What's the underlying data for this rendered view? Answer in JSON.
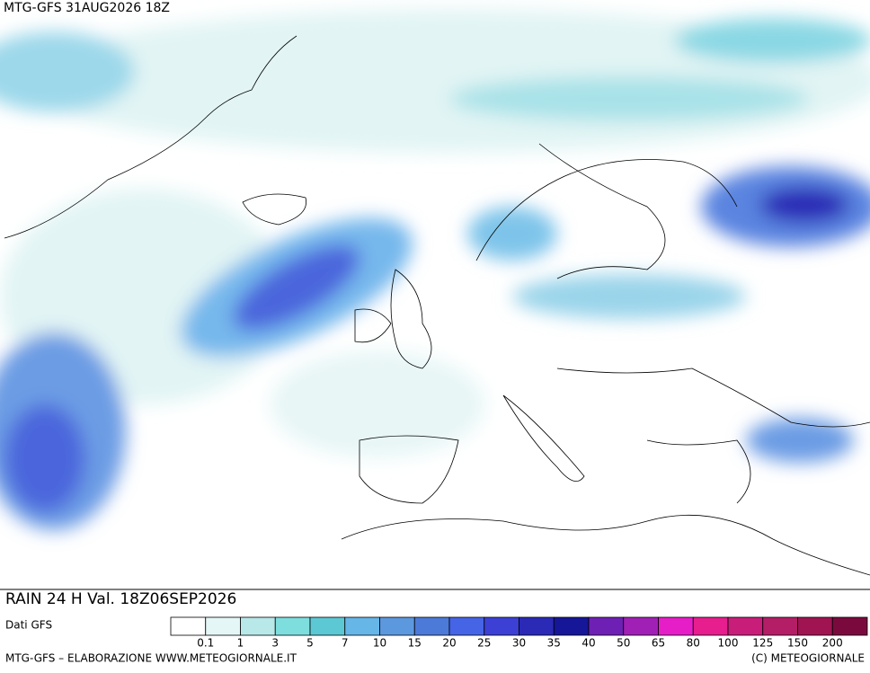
{
  "header": {
    "title": "MTG-GFS 31AUG2026 18Z"
  },
  "map": {
    "caption": "RAIN 24 H Val. 18Z06SEP2026"
  },
  "legend": {
    "source": "Dati GFS",
    "colors": [
      "#ffffff",
      "#e4f6f6",
      "#b8e8e8",
      "#7edede",
      "#5cc8d4",
      "#66b6e8",
      "#5c98de",
      "#4c7ad8",
      "#4664e6",
      "#3c40d4",
      "#2a2ab6",
      "#161698",
      "#6e20b4",
      "#a020b6",
      "#e61ec8",
      "#e61e8e",
      "#c81e7a",
      "#b41e66",
      "#a01452",
      "#7a0a3e"
    ],
    "labels": [
      0.1,
      1,
      3,
      5,
      7,
      10,
      15,
      20,
      25,
      30,
      35,
      40,
      50,
      65,
      80,
      100,
      125,
      150,
      200
    ]
  },
  "footer": {
    "left": "MTG-GFS – ELABORAZIONE WWW.METEOGIORNALE.IT",
    "right": "(C) METEOGIORNALE"
  }
}
